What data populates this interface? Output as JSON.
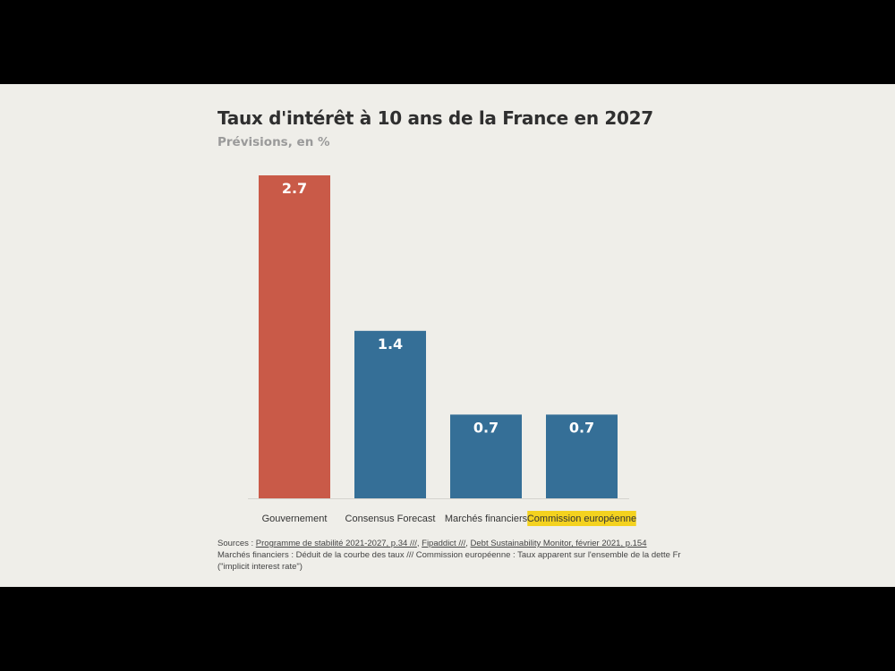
{
  "chart_data": {
    "type": "bar",
    "title": "Taux d'intérêt à 10 ans de la France en 2027",
    "subtitle": "Prévisions, en %",
    "categories": [
      "Gouvernement",
      "Consensus Forecast",
      "Marchés financiers",
      "Commission européenne"
    ],
    "values": [
      2.7,
      1.4,
      0.7,
      0.7
    ],
    "value_labels": [
      "2.7",
      "1.4",
      "0.7",
      "0.7"
    ],
    "bar_colors": [
      "#c95a48",
      "#356f97",
      "#356f97",
      "#356f97"
    ],
    "highlighted_category": "Commission européenne",
    "highlight_color": "#f4d21f",
    "ylim": [
      0,
      2.7
    ],
    "grid": false,
    "legend": "none"
  },
  "notes": {
    "sources_prefix": "Sources : ",
    "source_links": [
      "Programme de stabilité 2021-2027, p.34 ///",
      "Fipaddict ///",
      "Debt Sustainability Monitor, février 2021, p.154"
    ],
    "line2": "Marchés financiers : Déduit de la courbe des taux /// Commission européenne : Taux apparent sur l'ensemble de la dette Fr",
    "line3": "(\"implicit interest rate\")"
  }
}
